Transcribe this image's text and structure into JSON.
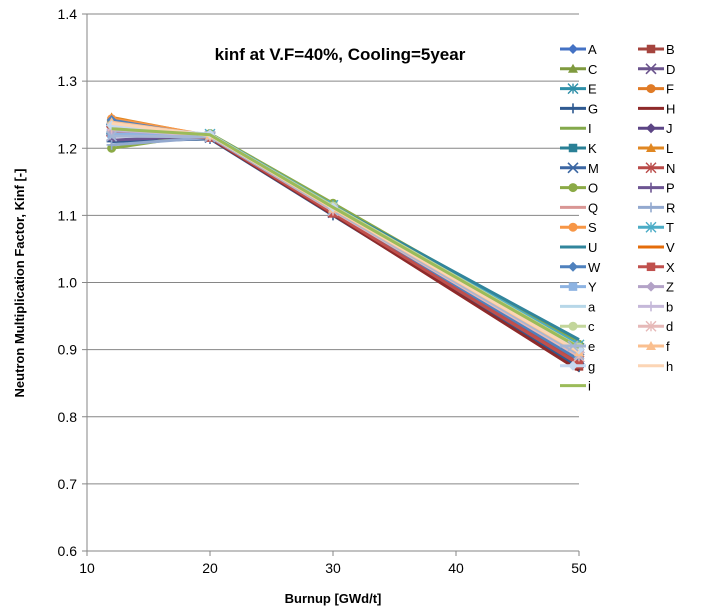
{
  "chart_data": {
    "type": "line",
    "title": "kinf at V.F=40%, Cooling=5year",
    "xlabel": "Burnup [GWd/t]",
    "ylabel": "Neutron Multiplication Factor, Kinf [-]",
    "xlim": [
      10,
      50
    ],
    "ylim": [
      0.6,
      1.4
    ],
    "x_ticks": [
      10,
      20,
      30,
      40,
      50
    ],
    "y_ticks": [
      0.6,
      0.7,
      0.8,
      0.9,
      1.0,
      1.1,
      1.2,
      1.3,
      1.4
    ],
    "x_tick_labels": [
      "10",
      "20",
      "30",
      "40",
      "50"
    ],
    "y_tick_labels": [
      "0.6",
      "0.7",
      "0.8",
      "0.9",
      "1.0",
      "1.1",
      "1.2",
      "1.3",
      "1.4"
    ],
    "grid": "horizontal",
    "legend_position": "right",
    "x": [
      12,
      20,
      30,
      50
    ],
    "series": [
      {
        "name": "A",
        "color": "#4472C4",
        "marker": "diamond",
        "values": [
          1.236,
          1.218,
          1.108,
          0.9
        ]
      },
      {
        "name": "B",
        "color": "#A5443E",
        "marker": "square",
        "values": [
          1.222,
          1.216,
          1.103,
          0.875
        ]
      },
      {
        "name": "C",
        "color": "#7F9A3E",
        "marker": "triangle",
        "values": [
          1.232,
          1.219,
          1.111,
          0.905
        ]
      },
      {
        "name": "D",
        "color": "#6B548D",
        "marker": "x",
        "values": [
          1.226,
          1.217,
          1.106,
          0.889
        ]
      },
      {
        "name": "E",
        "color": "#2E8FA8",
        "marker": "star",
        "values": [
          1.228,
          1.218,
          1.109,
          0.902
        ]
      },
      {
        "name": "F",
        "color": "#E07B26",
        "marker": "circle",
        "values": [
          1.241,
          1.216,
          1.104,
          0.88
        ]
      },
      {
        "name": "G",
        "color": "#2F5A91",
        "marker": "plus",
        "values": [
          1.21,
          1.214,
          1.1,
          0.874
        ]
      },
      {
        "name": "H",
        "color": "#8E2A2A",
        "marker": "none",
        "values": [
          1.219,
          1.215,
          1.101,
          0.869
        ]
      },
      {
        "name": "I",
        "color": "#84A94B",
        "marker": "none",
        "values": [
          1.224,
          1.22,
          1.116,
          0.912
        ]
      },
      {
        "name": "J",
        "color": "#5C4585",
        "marker": "diamond",
        "values": [
          1.234,
          1.219,
          1.112,
          0.899
        ]
      },
      {
        "name": "K",
        "color": "#2A8096",
        "marker": "square",
        "values": [
          1.24,
          1.217,
          1.107,
          0.884
        ]
      },
      {
        "name": "L",
        "color": "#E08722",
        "marker": "triangle",
        "values": [
          1.246,
          1.218,
          1.11,
          0.894
        ]
      },
      {
        "name": "M",
        "color": "#3C67A3",
        "marker": "x",
        "values": [
          1.229,
          1.216,
          1.104,
          0.886
        ]
      },
      {
        "name": "N",
        "color": "#B94A48",
        "marker": "star",
        "values": [
          1.225,
          1.217,
          1.105,
          0.883
        ]
      },
      {
        "name": "O",
        "color": "#8BAA46",
        "marker": "circle",
        "values": [
          1.2,
          1.222,
          1.118,
          0.908
        ]
      },
      {
        "name": "P",
        "color": "#6D5592",
        "marker": "plus",
        "values": [
          1.212,
          1.219,
          1.113,
          0.897
        ]
      },
      {
        "name": "Q",
        "color": "#D99694",
        "marker": "none",
        "values": [
          1.233,
          1.218,
          1.109,
          0.896
        ]
      },
      {
        "name": "R",
        "color": "#93A9CF",
        "marker": "plus",
        "values": [
          1.205,
          1.216,
          1.106,
          0.891
        ]
      },
      {
        "name": "S",
        "color": "#F79646",
        "marker": "circle",
        "values": [
          1.244,
          1.219,
          1.111,
          0.893
        ]
      },
      {
        "name": "T",
        "color": "#4BACC6",
        "marker": "star",
        "values": [
          1.23,
          1.221,
          1.115,
          0.907
        ]
      },
      {
        "name": "U",
        "color": "#31859C",
        "marker": "none",
        "values": [
          1.227,
          1.22,
          1.114,
          0.915
        ]
      },
      {
        "name": "V",
        "color": "#E46C0A",
        "marker": "none",
        "values": [
          1.238,
          1.218,
          1.108,
          0.888
        ]
      },
      {
        "name": "W",
        "color": "#4F81BD",
        "marker": "diamond",
        "values": [
          1.242,
          1.217,
          1.106,
          0.885
        ]
      },
      {
        "name": "X",
        "color": "#C0504D",
        "marker": "square",
        "values": [
          1.223,
          1.216,
          1.103,
          0.878
        ]
      },
      {
        "name": "Y",
        "color": "#8DB3E2",
        "marker": "square",
        "values": [
          1.221,
          1.219,
          1.112,
          0.898
        ]
      },
      {
        "name": "Z",
        "color": "#B3A2C7",
        "marker": "diamond",
        "values": [
          1.226,
          1.22,
          1.113,
          0.901
        ]
      },
      {
        "name": "a",
        "color": "#B7D7E8",
        "marker": "none",
        "values": [
          1.232,
          1.219,
          1.11,
          0.899
        ]
      },
      {
        "name": "b",
        "color": "#C5B8D9",
        "marker": "plus",
        "values": [
          1.228,
          1.218,
          1.109,
          0.895
        ]
      },
      {
        "name": "c",
        "color": "#C3D69B",
        "marker": "circle",
        "values": [
          1.235,
          1.22,
          1.114,
          0.904
        ]
      },
      {
        "name": "d",
        "color": "#E6B9B8",
        "marker": "star",
        "values": [
          1.231,
          1.218,
          1.107,
          0.89
        ]
      },
      {
        "name": "e",
        "color": "#A6B6D4",
        "marker": "x",
        "values": [
          1.218,
          1.217,
          1.108,
          0.893
        ]
      },
      {
        "name": "f",
        "color": "#FABF8F",
        "marker": "triangle",
        "values": [
          1.239,
          1.219,
          1.11,
          0.896
        ]
      },
      {
        "name": "g",
        "color": "#C6D9F1",
        "marker": "diamond",
        "values": [
          1.234,
          1.221,
          1.112,
          0.9
        ]
      },
      {
        "name": "h",
        "color": "#FCD5B5",
        "marker": "none",
        "values": [
          1.237,
          1.219,
          1.111,
          0.897
        ]
      },
      {
        "name": "i",
        "color": "#9BBB59",
        "marker": "none",
        "values": [
          1.229,
          1.22,
          1.112,
          0.903
        ]
      }
    ]
  }
}
